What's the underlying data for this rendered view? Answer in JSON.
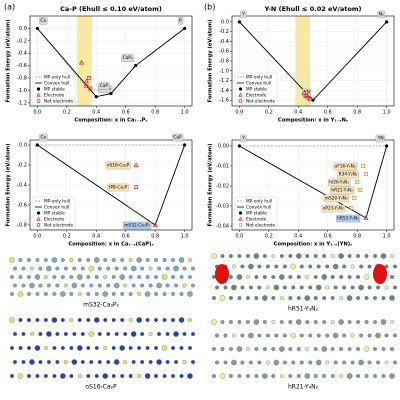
{
  "panels": [
    "(a)",
    "(b)"
  ],
  "structures": [
    "mS32-Ca₃P₂",
    "oS16-Ca₂P",
    "hR51-Y₃N₂",
    "hR21-Y₄N₂"
  ],
  "chart_data": [
    {
      "type": "scatter",
      "title": "Ca-P (Ehull ≤ 0.10 eV/atom)",
      "xlabel": "Composition: x in Ca₁₋ₓPₓ",
      "ylabel": "Formation Energy (eV/atom)",
      "xlim": [
        -0.05,
        1.05
      ],
      "ylim": [
        -1.25,
        0.2
      ],
      "xticks": [
        {
          "value": 0,
          "label": "0.0"
        },
        0.2,
        0.4,
        0.6,
        0.8,
        {
          "value": 1,
          "label": "1.0"
        }
      ],
      "yticks": [
        {
          "value": 0,
          "label": "0.0"
        },
        -0.2,
        -0.4,
        -0.6,
        -0.8,
        {
          "value": -1,
          "label": "-1.0"
        },
        -1.2
      ],
      "band": [
        0.27,
        0.37
      ],
      "band_color": "#f7e9a0",
      "legend": "lower left",
      "series": [
        {
          "name": "MP-only hull",
          "style": "dashed-line",
          "color": "#999999",
          "x": [
            0,
            0.333,
            0.5,
            0.667,
            1
          ],
          "values": [
            0,
            -0.95,
            -1.05,
            -0.6,
            0
          ]
        },
        {
          "name": "Convex hull",
          "style": "line",
          "color": "#000000",
          "x": [
            0,
            0.4,
            0.5,
            0.667,
            1
          ],
          "values": [
            0,
            -1.1,
            -1.05,
            -0.6,
            0
          ]
        },
        {
          "name": "MP stable",
          "style": "point",
          "color": "#000000",
          "x": [
            0,
            0.4,
            0.5,
            0.667,
            1
          ],
          "values": [
            0,
            -1.1,
            -1.05,
            -0.6,
            0
          ],
          "point_labels": [
            "Ca",
            "Ca₃P₂",
            "CaP",
            "CaP₂",
            "P"
          ],
          "label_fill": "#d9d9d9"
        },
        {
          "name": "Electrode",
          "style": "triangle",
          "color": "#d62728",
          "x": [
            0.3,
            0.333
          ],
          "values": [
            -0.55,
            -0.85
          ]
        },
        {
          "name": "Not electrode",
          "style": "square",
          "color": "#d62728",
          "x": [
            0.35,
            0.333,
            0.36
          ],
          "values": [
            -0.8,
            -0.93,
            -0.97
          ]
        }
      ]
    },
    {
      "type": "scatter",
      "xlabel": "Composition: x in Ca₁₋ₓ(CaP)ₓ",
      "ylabel": "Formation Energy (eV/atom)",
      "xlim": [
        -0.05,
        1.05
      ],
      "ylim": [
        -0.85,
        0.05
      ],
      "xticks": [
        {
          "value": 0,
          "label": "0.0"
        },
        0.2,
        0.4,
        0.6,
        0.8,
        {
          "value": 1,
          "label": "1.0"
        }
      ],
      "yticks": [
        {
          "value": 0,
          "label": "0.0"
        },
        -0.2,
        -0.4,
        -0.6,
        -0.8
      ],
      "legend": "lower left",
      "series": [
        {
          "name": "MP-only hull",
          "style": "dashed-line",
          "color": "#999999",
          "x": [
            0,
            1
          ],
          "values": [
            0,
            0
          ]
        },
        {
          "name": "Convex hull",
          "style": "line",
          "color": "#000000",
          "x": [
            0,
            0.8,
            1
          ],
          "values": [
            0,
            -0.8,
            0
          ]
        },
        {
          "name": "MP stable",
          "style": "point",
          "color": "#000000",
          "x": [
            0,
            1
          ],
          "values": [
            0,
            0
          ],
          "point_labels": [
            "Ca",
            "CaP"
          ],
          "label_fill": "#d9d9d9"
        },
        {
          "name": "Electrode",
          "style": "triangle",
          "color": "#d62728",
          "x": [
            0.8,
            0.67
          ],
          "values": [
            -0.8,
            -0.2
          ],
          "point_labels": [
            "mS32-Ca₃P₂",
            "oS16-Ca₂P"
          ],
          "label_fill": [
            "#aecbf2",
            "#fde3b5"
          ]
        },
        {
          "name": "Not electrode",
          "style": "square",
          "color": "#d62728",
          "x": [
            0.67
          ],
          "values": [
            -0.42
          ],
          "point_labels": [
            "tP8-Ca₂P"
          ],
          "label_fill": [
            "#fde3b5"
          ]
        }
      ]
    },
    {
      "type": "scatter",
      "title": "Y-N (Ehull ≤ 0.02 eV/atom)",
      "xlabel": "Composition: x in Y₁₋ₓNₓ",
      "ylabel": "Formation Energy (eV/atom)",
      "xlim": [
        -0.05,
        1.05
      ],
      "ylim": [
        -1.72,
        0.12
      ],
      "xticks": [
        {
          "value": 0,
          "label": "0.0"
        },
        0.2,
        0.4,
        0.6,
        0.8,
        {
          "value": 1,
          "label": "1.0"
        }
      ],
      "yticks": [
        {
          "value": 0,
          "label": "0.0"
        },
        -0.2,
        -0.4,
        -0.6,
        -0.8,
        {
          "value": -1,
          "label": "-1.0"
        },
        -1.2,
        -1.4,
        -1.6
      ],
      "band": [
        0.38,
        0.48
      ],
      "band_color": "#f7e9a0",
      "legend": "lower left",
      "series": [
        {
          "name": "MP-only hull",
          "style": "dashed-line",
          "color": "#999999",
          "x": [
            0,
            0.5,
            1
          ],
          "values": [
            0,
            -1.6,
            0
          ]
        },
        {
          "name": "Convex hull",
          "style": "line",
          "color": "#000000",
          "x": [
            0,
            0.5,
            1
          ],
          "values": [
            0,
            -1.6,
            0
          ]
        },
        {
          "name": "MP stable",
          "style": "point",
          "color": "#000000",
          "x": [
            0,
            0.5,
            1
          ],
          "values": [
            0,
            -1.6,
            0
          ],
          "point_labels": [
            "Y",
            "YN",
            "N₂"
          ],
          "label_fill": "#d9d9d9"
        },
        {
          "name": "Electrode",
          "style": "triangle",
          "color": "#d62728",
          "x": [
            0.44,
            0.46
          ],
          "values": [
            -1.45,
            -1.5
          ]
        },
        {
          "name": "Not electrode",
          "style": "square",
          "color": "#d62728",
          "x": [
            0.45,
            0.47,
            0.48
          ],
          "values": [
            -1.52,
            -1.55,
            -1.58
          ]
        }
      ]
    },
    {
      "type": "scatter",
      "xlabel": "Composition: x in Y₁₋ₓ(YN)ₓ",
      "ylabel": "Formation Energy (eV/atom)",
      "xlim": [
        -0.05,
        1.05
      ],
      "ylim": [
        -0.042,
        0.003
      ],
      "xticks": [
        {
          "value": 0,
          "label": "0.0"
        },
        0.2,
        0.4,
        0.6,
        0.8,
        {
          "value": 1,
          "label": "1.0"
        }
      ],
      "yticks": [
        {
          "value": 0,
          "label": "0.00"
        },
        -0.01,
        -0.02,
        -0.03,
        -0.04
      ],
      "legend": "lower left",
      "series": [
        {
          "name": "MP-only hull",
          "style": "dashed-line",
          "color": "#999999",
          "x": [
            0,
            1
          ],
          "values": [
            0,
            0
          ]
        },
        {
          "name": "Convex hull",
          "style": "line",
          "color": "#000000",
          "x": [
            0,
            0.86,
            1
          ],
          "values": [
            0,
            -0.036,
            0
          ]
        },
        {
          "name": "MP stable",
          "style": "point",
          "color": "#000000",
          "x": [
            0,
            1
          ],
          "values": [
            0,
            0
          ],
          "point_labels": [
            "Y",
            "YN"
          ],
          "label_fill": "#d9d9d9"
        },
        {
          "name": "Electrode",
          "style": "triangle",
          "color": "#d62728",
          "x": [
            0.86
          ],
          "values": [
            -0.036
          ],
          "point_labels": [
            "hR51-Y₃N₂"
          ],
          "label_fill": [
            "#aecbf2"
          ]
        },
        {
          "name": "Not electrode",
          "style": "square",
          "color": "#f08a24",
          "x": [
            0.84,
            0.86,
            0.8,
            0.82,
            0.78,
            0.76
          ],
          "values": [
            -0.01,
            -0.014,
            -0.018,
            -0.022,
            -0.026,
            -0.031
          ],
          "point_labels": [
            "oF16-Y₄N₃",
            "R34-Y₃N₂",
            "hI26-Y₃N₂",
            "hR21-Y₄N₂",
            "mS20-Y₄N₃",
            "oP23-Y₃N₂"
          ],
          "label_fill": [
            "#fde3b5",
            "#fde3b5",
            "#fde3b5",
            "#fde3b5",
            "#fde3b5",
            "#fde3b5"
          ]
        }
      ]
    }
  ]
}
